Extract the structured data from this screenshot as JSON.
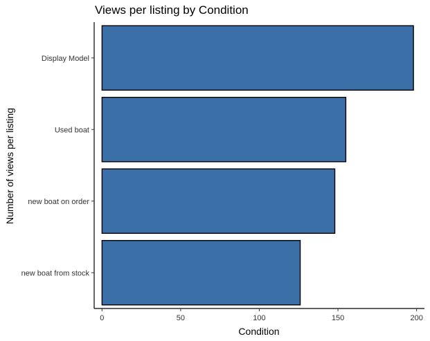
{
  "chart_data": {
    "type": "bar",
    "orientation": "horizontal",
    "title": "Views per listing by Condition",
    "xlabel": "Condition",
    "ylabel": "Number of views per listing",
    "categories": [
      "Display Model",
      "Used boat",
      "new boat on order",
      "new boat from stock"
    ],
    "values": [
      198,
      155,
      148,
      126
    ],
    "xlim": [
      -5,
      205
    ],
    "xticks": [
      0,
      50,
      100,
      150,
      200
    ],
    "grid": false,
    "legend": "none",
    "bar_fill": "#3A6FA8",
    "bar_stroke": "#000000"
  }
}
